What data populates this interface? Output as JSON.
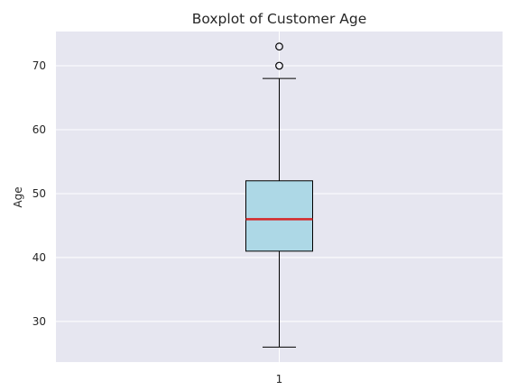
{
  "chart_data": {
    "type": "box",
    "title": "Boxplot of Customer Age",
    "xlabel": "",
    "ylabel": "Age",
    "ylim": [
      23.65,
      75.35
    ],
    "grid": true,
    "x_tick_labels": [
      "1"
    ],
    "y_ticks": [
      30,
      40,
      50,
      60,
      70
    ],
    "y_tick_labels": [
      "30",
      "40",
      "50",
      "60",
      "70"
    ],
    "boxes": [
      {
        "category": "1",
        "whisker_low": 26,
        "q1": 41,
        "median": 46,
        "q3": 52,
        "whisker_high": 68,
        "outliers": [
          70,
          73
        ]
      }
    ],
    "colors": {
      "plot_background": "#e6e6f0",
      "grid": "#ffffff",
      "box_fill": "#add8e6",
      "median_line": "#d62728",
      "lines": "#000000"
    }
  }
}
